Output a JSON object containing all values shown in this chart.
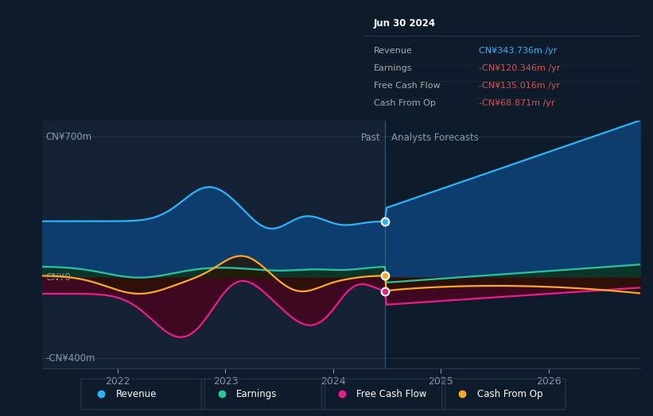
{
  "bg_color": "#0d1b2a",
  "past_region_color": "#152236",
  "future_region_color": "#0d1b2a",
  "y_label_700": "CN¥700m",
  "y_label_0": "CN¥0",
  "y_label_neg400": "-CN¥400m",
  "past_label": "Past",
  "forecast_label": "Analysts Forecasts",
  "tooltip_title": "Jun 30 2024",
  "tooltip_rows": [
    [
      "Revenue",
      "CN¥343.736m /yr",
      "#29b6f6"
    ],
    [
      "Earnings",
      "-CN¥120.346m /yr",
      "#e05050"
    ],
    [
      "Free Cash Flow",
      "-CN¥135.016m /yr",
      "#e05050"
    ],
    [
      "Cash From Op",
      "-CN¥68.871m /yr",
      "#e05050"
    ]
  ],
  "legend_items": [
    [
      "Revenue",
      "#29b6f6"
    ],
    [
      "Earnings",
      "#26c6a0"
    ],
    [
      "Free Cash Flow",
      "#e91e8c"
    ],
    [
      "Cash From Op",
      "#ffa726"
    ]
  ],
  "x_ticks": [
    2022,
    2023,
    2024,
    2025,
    2026
  ],
  "x_min": 2021.3,
  "x_max": 2026.85,
  "y_min": -450,
  "y_max": 780,
  "divider_x": 2024.48,
  "revenue_color": "#29b6f6",
  "earnings_color": "#26c6a0",
  "fcf_color": "#e91e8c",
  "cashop_color": "#ffa726",
  "revenue_fill_color": "#0f4070",
  "earnings_fill_color": "#0d3d2e",
  "fcf_fill_color": "#4a0a25",
  "cashop_fill_color": "#3a2200"
}
